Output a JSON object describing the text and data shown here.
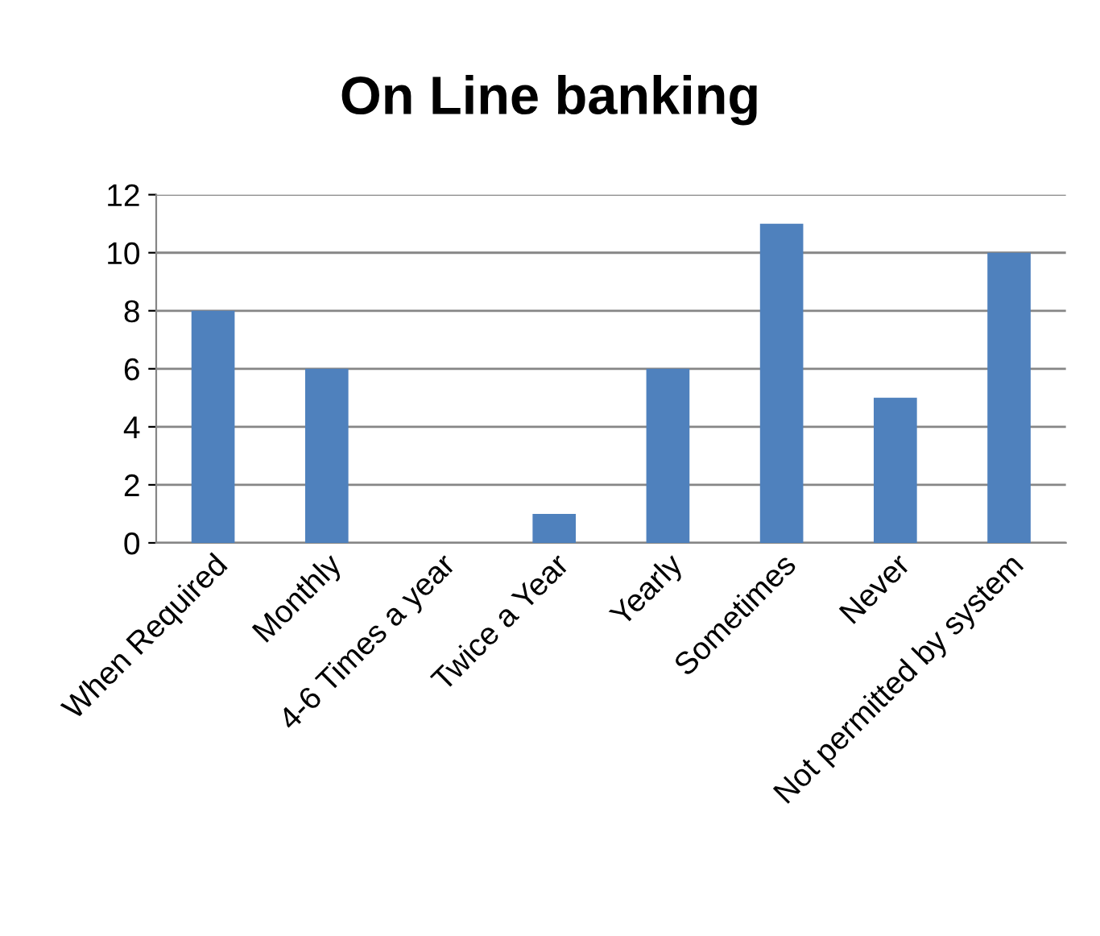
{
  "chart_data": {
    "type": "bar",
    "title": "On Line banking",
    "categories": [
      "When Required",
      "Monthly",
      "4-6 Times a year",
      "Twice a Year",
      "Yearly",
      "Sometimes",
      "Never",
      "Not permitted by system"
    ],
    "values": [
      8,
      6,
      0,
      1,
      6,
      11,
      5,
      10
    ],
    "color": "#4f81bd",
    "ylim": [
      0,
      12
    ],
    "yticks": [
      0,
      2,
      4,
      6,
      8,
      10,
      12
    ],
    "grid": "y",
    "legend": false
  }
}
